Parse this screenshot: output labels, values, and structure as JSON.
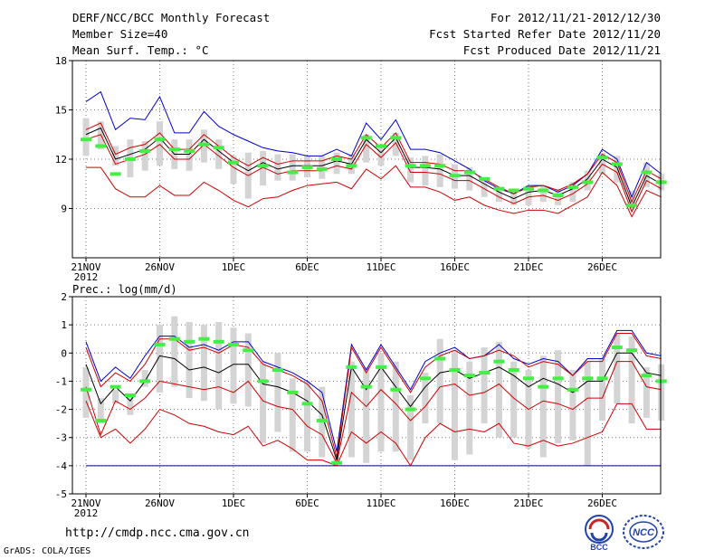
{
  "header": {
    "title": "DERF/NCC/BCC Monthly Forecast",
    "member_size": "Member Size=40",
    "variable": "Mean Surf. Temp.: °C",
    "period": "For 2012/11/21-2012/12/30",
    "fcst_started": "Fcst Started Refer Date 2012/11/20",
    "fcst_produced": "Fcst Produced Date 2012/11/21"
  },
  "footer": {
    "url": "http://cmdp.ncc.cma.gov.cn",
    "grads": "GrADS: COLA/IGES",
    "logo_bcc": "BCC",
    "logo_ncc": "NCC"
  },
  "colors": {
    "ensemble_mean": "#000000",
    "plus_minus_std": "#cc0000",
    "max_min": "#0000cc",
    "observation": "#44ee44",
    "spread_box": "#d4d4d4",
    "floor_line": "#000080",
    "grid": "#777777"
  },
  "chart_data": [
    {
      "type": "line",
      "name": "temperature-panel",
      "ylabel": "Mean Surf. Temp.: °C",
      "ylim": [
        6,
        18
      ],
      "yticks": [
        "9",
        "12",
        "15",
        "18"
      ],
      "xlim": [
        0,
        40
      ],
      "xticks": [
        {
          "x": 0,
          "label": "21NOV"
        },
        {
          "x": 5,
          "label": "26NOV"
        },
        {
          "x": 10,
          "label": "1DEC"
        },
        {
          "x": 15,
          "label": "6DEC"
        },
        {
          "x": 20,
          "label": "11DEC"
        },
        {
          "x": 25,
          "label": "16DEC"
        },
        {
          "x": 30,
          "label": "21DEC"
        },
        {
          "x": 35,
          "label": "26DEC"
        }
      ],
      "year_label": "2012",
      "mean": [
        13.5,
        13.9,
        12,
        12.3,
        12.6,
        13.3,
        12.3,
        12.3,
        13.2,
        12.5,
        11.8,
        11.3,
        11.8,
        11.4,
        11.6,
        11.6,
        11.6,
        11.9,
        11.7,
        13.2,
        12.4,
        13.3,
        11.5,
        11.5,
        11.4,
        11,
        11,
        10.5,
        10,
        9.6,
        10,
        10.1,
        9.8,
        10.2,
        10.8,
        12,
        11.5,
        9.1,
        11,
        10.5
      ],
      "plus_std": [
        13.8,
        14.2,
        12.3,
        12.7,
        12.9,
        13.6,
        12.6,
        12.6,
        13.5,
        12.8,
        12.1,
        11.6,
        12.1,
        11.7,
        11.9,
        11.9,
        11.9,
        12.2,
        12,
        13.5,
        12.7,
        13.6,
        11.8,
        11.8,
        11.7,
        11.3,
        11.3,
        10.8,
        10.3,
        9.9,
        10.3,
        10.4,
        10.1,
        10.5,
        11.1,
        12.3,
        11.8,
        9.4,
        11.3,
        10.8
      ],
      "minus_std": [
        13.2,
        13.5,
        11.7,
        12,
        12.3,
        12.9,
        12,
        12,
        12.9,
        12.2,
        11.5,
        11,
        11.5,
        11.1,
        11.3,
        11.3,
        11.3,
        11.6,
        11.4,
        12.9,
        12.1,
        13,
        11.2,
        11.2,
        11.1,
        10.7,
        10.7,
        10.2,
        9.7,
        9.3,
        9.7,
        9.8,
        9.5,
        9.9,
        10.5,
        11.7,
        11.2,
        8.8,
        10.7,
        10.2
      ],
      "max": [
        15.5,
        16.1,
        13.8,
        14.5,
        14.4,
        15.8,
        13.6,
        13.6,
        14.9,
        14,
        13.5,
        13.1,
        12.7,
        12.5,
        12.4,
        12.2,
        12.2,
        12.6,
        12.2,
        14.2,
        13.2,
        14.4,
        12.6,
        12.6,
        12.4,
        11.9,
        11.4,
        10.7,
        10.2,
        9.9,
        10.4,
        10.4,
        10,
        10.4,
        11.1,
        12.6,
        12,
        9.7,
        11.8,
        11.1
      ],
      "min": [
        11.5,
        11.5,
        10.2,
        9.7,
        9.7,
        10.4,
        9.8,
        9.8,
        10.6,
        10.1,
        9.5,
        9.1,
        9.6,
        9.7,
        10.1,
        10.4,
        10.5,
        10.6,
        10.2,
        11.4,
        10.8,
        11.6,
        10.3,
        10.3,
        10,
        9.5,
        9.7,
        9.2,
        8.9,
        8.7,
        8.9,
        8.9,
        8.7,
        9.2,
        9.7,
        11.2,
        10.4,
        8.5,
        10.1,
        9.7
      ],
      "box_hi": [
        14.5,
        14.3,
        12.8,
        13.2,
        13.1,
        14.3,
        13.2,
        13.2,
        13.8,
        13.2,
        12.2,
        12.4,
        12.5,
        12.3,
        12.3,
        12.2,
        12.2,
        12.4,
        12.3,
        13.5,
        12.8,
        13.6,
        12.1,
        12.2,
        12.3,
        11.7,
        11.5,
        10.9,
        10.2,
        10.1,
        10.4,
        10.4,
        10.2,
        10.6,
        11.3,
        12.4,
        12.2,
        10.1,
        11.8,
        11.1
      ],
      "box_lo": [
        12.2,
        12.6,
        11.6,
        10.9,
        11.3,
        11.6,
        11.4,
        11.3,
        11.8,
        11.4,
        10.5,
        9.6,
        10.4,
        10.7,
        10.7,
        10.9,
        10.8,
        11.1,
        11.1,
        11.8,
        11.6,
        12.2,
        10.6,
        10.4,
        10.3,
        10.2,
        10.1,
        9.7,
        9.4,
        9.2,
        9.2,
        9.4,
        9.2,
        9.4,
        10.1,
        11.1,
        10.6,
        8.9,
        10.3,
        10.1
      ],
      "obs": [
        13.2,
        12.8,
        11.1,
        12,
        12.5,
        13.2,
        12.6,
        12.5,
        12.9,
        12.7,
        11.8,
        null,
        11.6,
        null,
        11.2,
        11.5,
        11.4,
        12,
        11.6,
        13.3,
        12.8,
        13.3,
        11.6,
        11.6,
        11.6,
        11,
        11.2,
        10.8,
        10.2,
        10.1,
        10.2,
        10.1,
        9.8,
        10.3,
        10.6,
        12.1,
        11.7,
        9.2,
        11.2,
        10.6
      ]
    },
    {
      "type": "line",
      "name": "precipitation-panel",
      "ylabel": "Prec.: log(mm/d)",
      "ylim": [
        -5,
        2
      ],
      "yticks": [
        "-5",
        "-4",
        "-3",
        "-2",
        "-1",
        "0",
        "1",
        "2"
      ],
      "xlim": [
        0,
        40
      ],
      "xticks": [
        {
          "x": 0,
          "label": "21NOV"
        },
        {
          "x": 5,
          "label": "26NOV"
        },
        {
          "x": 10,
          "label": "1DEC"
        },
        {
          "x": 15,
          "label": "6DEC"
        },
        {
          "x": 20,
          "label": "11DEC"
        },
        {
          "x": 25,
          "label": "16DEC"
        },
        {
          "x": 30,
          "label": "21DEC"
        },
        {
          "x": 35,
          "label": "26DEC"
        }
      ],
      "year_label": "2012",
      "mean": [
        -0.4,
        -1.8,
        -1.2,
        -1.7,
        -1,
        -0.1,
        -0.2,
        -0.6,
        -0.5,
        -0.7,
        -0.4,
        -0.4,
        -1.1,
        -1.2,
        -1.4,
        -1.7,
        -2.2,
        -3.8,
        -0.5,
        -1.3,
        -0.5,
        -1.2,
        -1.9,
        -1.2,
        -0.7,
        -0.6,
        -0.9,
        -0.7,
        -0.5,
        -0.8,
        -1.2,
        -0.9,
        -1.1,
        -1.4,
        -1,
        -1,
        0,
        0,
        -0.7,
        -0.8
      ],
      "plus_std": [
        0.2,
        -1.2,
        -0.7,
        -1,
        -0.4,
        0.5,
        0.5,
        0.1,
        0.2,
        0,
        0.3,
        0.2,
        -0.4,
        -0.6,
        -0.8,
        -1.1,
        -1.7,
        -3.7,
        0.2,
        -0.7,
        0.2,
        -0.6,
        -1.4,
        -0.5,
        -0.1,
        0.1,
        -0.2,
        -0.1,
        0.1,
        -0.1,
        -0.5,
        -0.3,
        -0.4,
        -0.8,
        -0.3,
        -0.3,
        0.7,
        0.7,
        -0.1,
        -0.2
      ],
      "minus_std": [
        -1.2,
        -2.9,
        -1.7,
        -2,
        -1.6,
        -1,
        -1.1,
        -1.2,
        -1.3,
        -1.2,
        -1.4,
        -1,
        -1.7,
        -1.9,
        -2,
        -2.6,
        -2.9,
        -3.9,
        -1.4,
        -1.9,
        -1.3,
        -1.8,
        -2.4,
        -1.9,
        -1.2,
        -1.1,
        -1.5,
        -1.4,
        -1.1,
        -1.6,
        -2,
        -1.7,
        -1.8,
        -2,
        -1.6,
        -1.6,
        -0.3,
        -0.3,
        -1.2,
        -1.3
      ],
      "max": [
        0.4,
        -1,
        -0.5,
        -0.9,
        -0.1,
        0.6,
        0.6,
        0.2,
        0.3,
        0.1,
        0.4,
        0.4,
        -0.3,
        -0.5,
        -0.7,
        -1,
        -1.4,
        -3.5,
        0.3,
        -0.6,
        0.3,
        -0.5,
        -1.3,
        -0.3,
        0,
        0.2,
        -0.2,
        -0.1,
        0.3,
        -0.2,
        -0.4,
        -0.2,
        -0.3,
        -0.8,
        -0.2,
        -0.2,
        0.8,
        0.8,
        0,
        -0.1
      ],
      "min": [
        -1.7,
        -3,
        -2.7,
        -3.2,
        -2.7,
        -2,
        -2.2,
        -2.5,
        -2.6,
        -2.8,
        -2.9,
        -2.6,
        -3.3,
        -3.1,
        -3.4,
        -3.8,
        -3.8,
        -4,
        -2.8,
        -3.2,
        -2.8,
        -3.2,
        -4,
        -3,
        -2.5,
        -2.8,
        -2.7,
        -2.8,
        -2.5,
        -3.2,
        -3.3,
        -3.1,
        -3.3,
        -3.2,
        -3,
        -2.8,
        -1.8,
        -1.8,
        -2.7,
        -2.7
      ],
      "box_hi": [
        -0.5,
        -1.6,
        -1.3,
        -1.5,
        -0.6,
        1,
        1.3,
        1.1,
        1,
        1.1,
        0.9,
        0.7,
        -0.3,
        0,
        -0.9,
        -1,
        -1.2,
        -3.7,
        -0.3,
        -0.5,
        0,
        -0.3,
        -1.5,
        -0.7,
        0.5,
        0.1,
        -0.3,
        0.2,
        0.4,
        -0.3,
        -0.6,
        -0.1,
        0.1,
        -0.6,
        -0.3,
        -0.2,
        0.7,
        0.6,
        -0.5,
        -0.4
      ],
      "box_lo": [
        -2.3,
        -2.5,
        -1.8,
        -2.2,
        -1.2,
        -1.4,
        -1.2,
        -1.6,
        -1.7,
        -2,
        -1.8,
        -1.9,
        -3.2,
        -2.8,
        -3.5,
        -3.5,
        -3.7,
        -3.9,
        -3.7,
        -3.9,
        -3.5,
        -3.5,
        -3.8,
        -2.5,
        -2.5,
        -3.8,
        -3.6,
        -2.5,
        -3,
        -3,
        -3.4,
        -3.7,
        -3.2,
        -3.1,
        -4,
        -2.4,
        -1.8,
        -2.5,
        -2.3,
        -2.4
      ],
      "obs": [
        -1.3,
        -2.4,
        -1.2,
        -1.5,
        -1,
        0.3,
        0.5,
        0.4,
        0.5,
        0.4,
        0.3,
        0.1,
        -1,
        -0.6,
        -1.4,
        -1.8,
        -2.4,
        -3.9,
        -0.5,
        -1.2,
        -0.5,
        -1.3,
        -2,
        -0.9,
        -0.2,
        -0.6,
        -0.8,
        -0.7,
        -0.3,
        -0.6,
        -0.9,
        -1.2,
        -0.9,
        -1.3,
        -0.9,
        -0.9,
        0.2,
        0.1,
        -0.8,
        -1
      ],
      "floor": -4
    }
  ]
}
